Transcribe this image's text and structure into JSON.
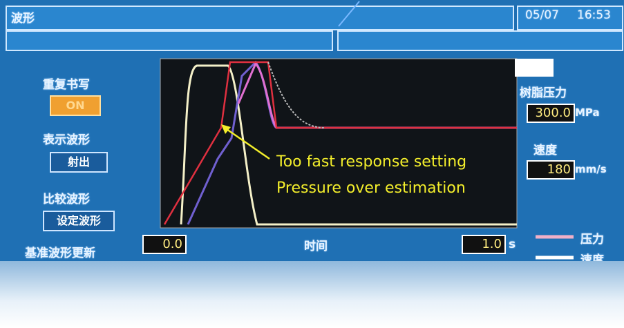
{
  "header": {
    "title": "波形",
    "date": "05/07",
    "time": "16:53"
  },
  "left_panel": {
    "repeat_label": "重复书写",
    "repeat_button": "ON",
    "display_label": "表示波形",
    "display_button": "射出",
    "compare_label": "比较波形",
    "compare_button": "设定波形",
    "reference_label": "基准波形更新"
  },
  "right_panel": {
    "pressure_label": "树脂压力",
    "pressure_value": "300.0",
    "pressure_unit": "MPa",
    "speed_label": "速度",
    "speed_value": "180",
    "speed_unit": "mm/s"
  },
  "time_axis": {
    "start": "0.0",
    "label": "时间",
    "end": "1.0",
    "unit": "s"
  },
  "legend": {
    "pressure": "压力",
    "speed": "速度"
  },
  "annotation": {
    "line1": "Too fast response setting",
    "line2": "Pressure over estimation"
  }
}
